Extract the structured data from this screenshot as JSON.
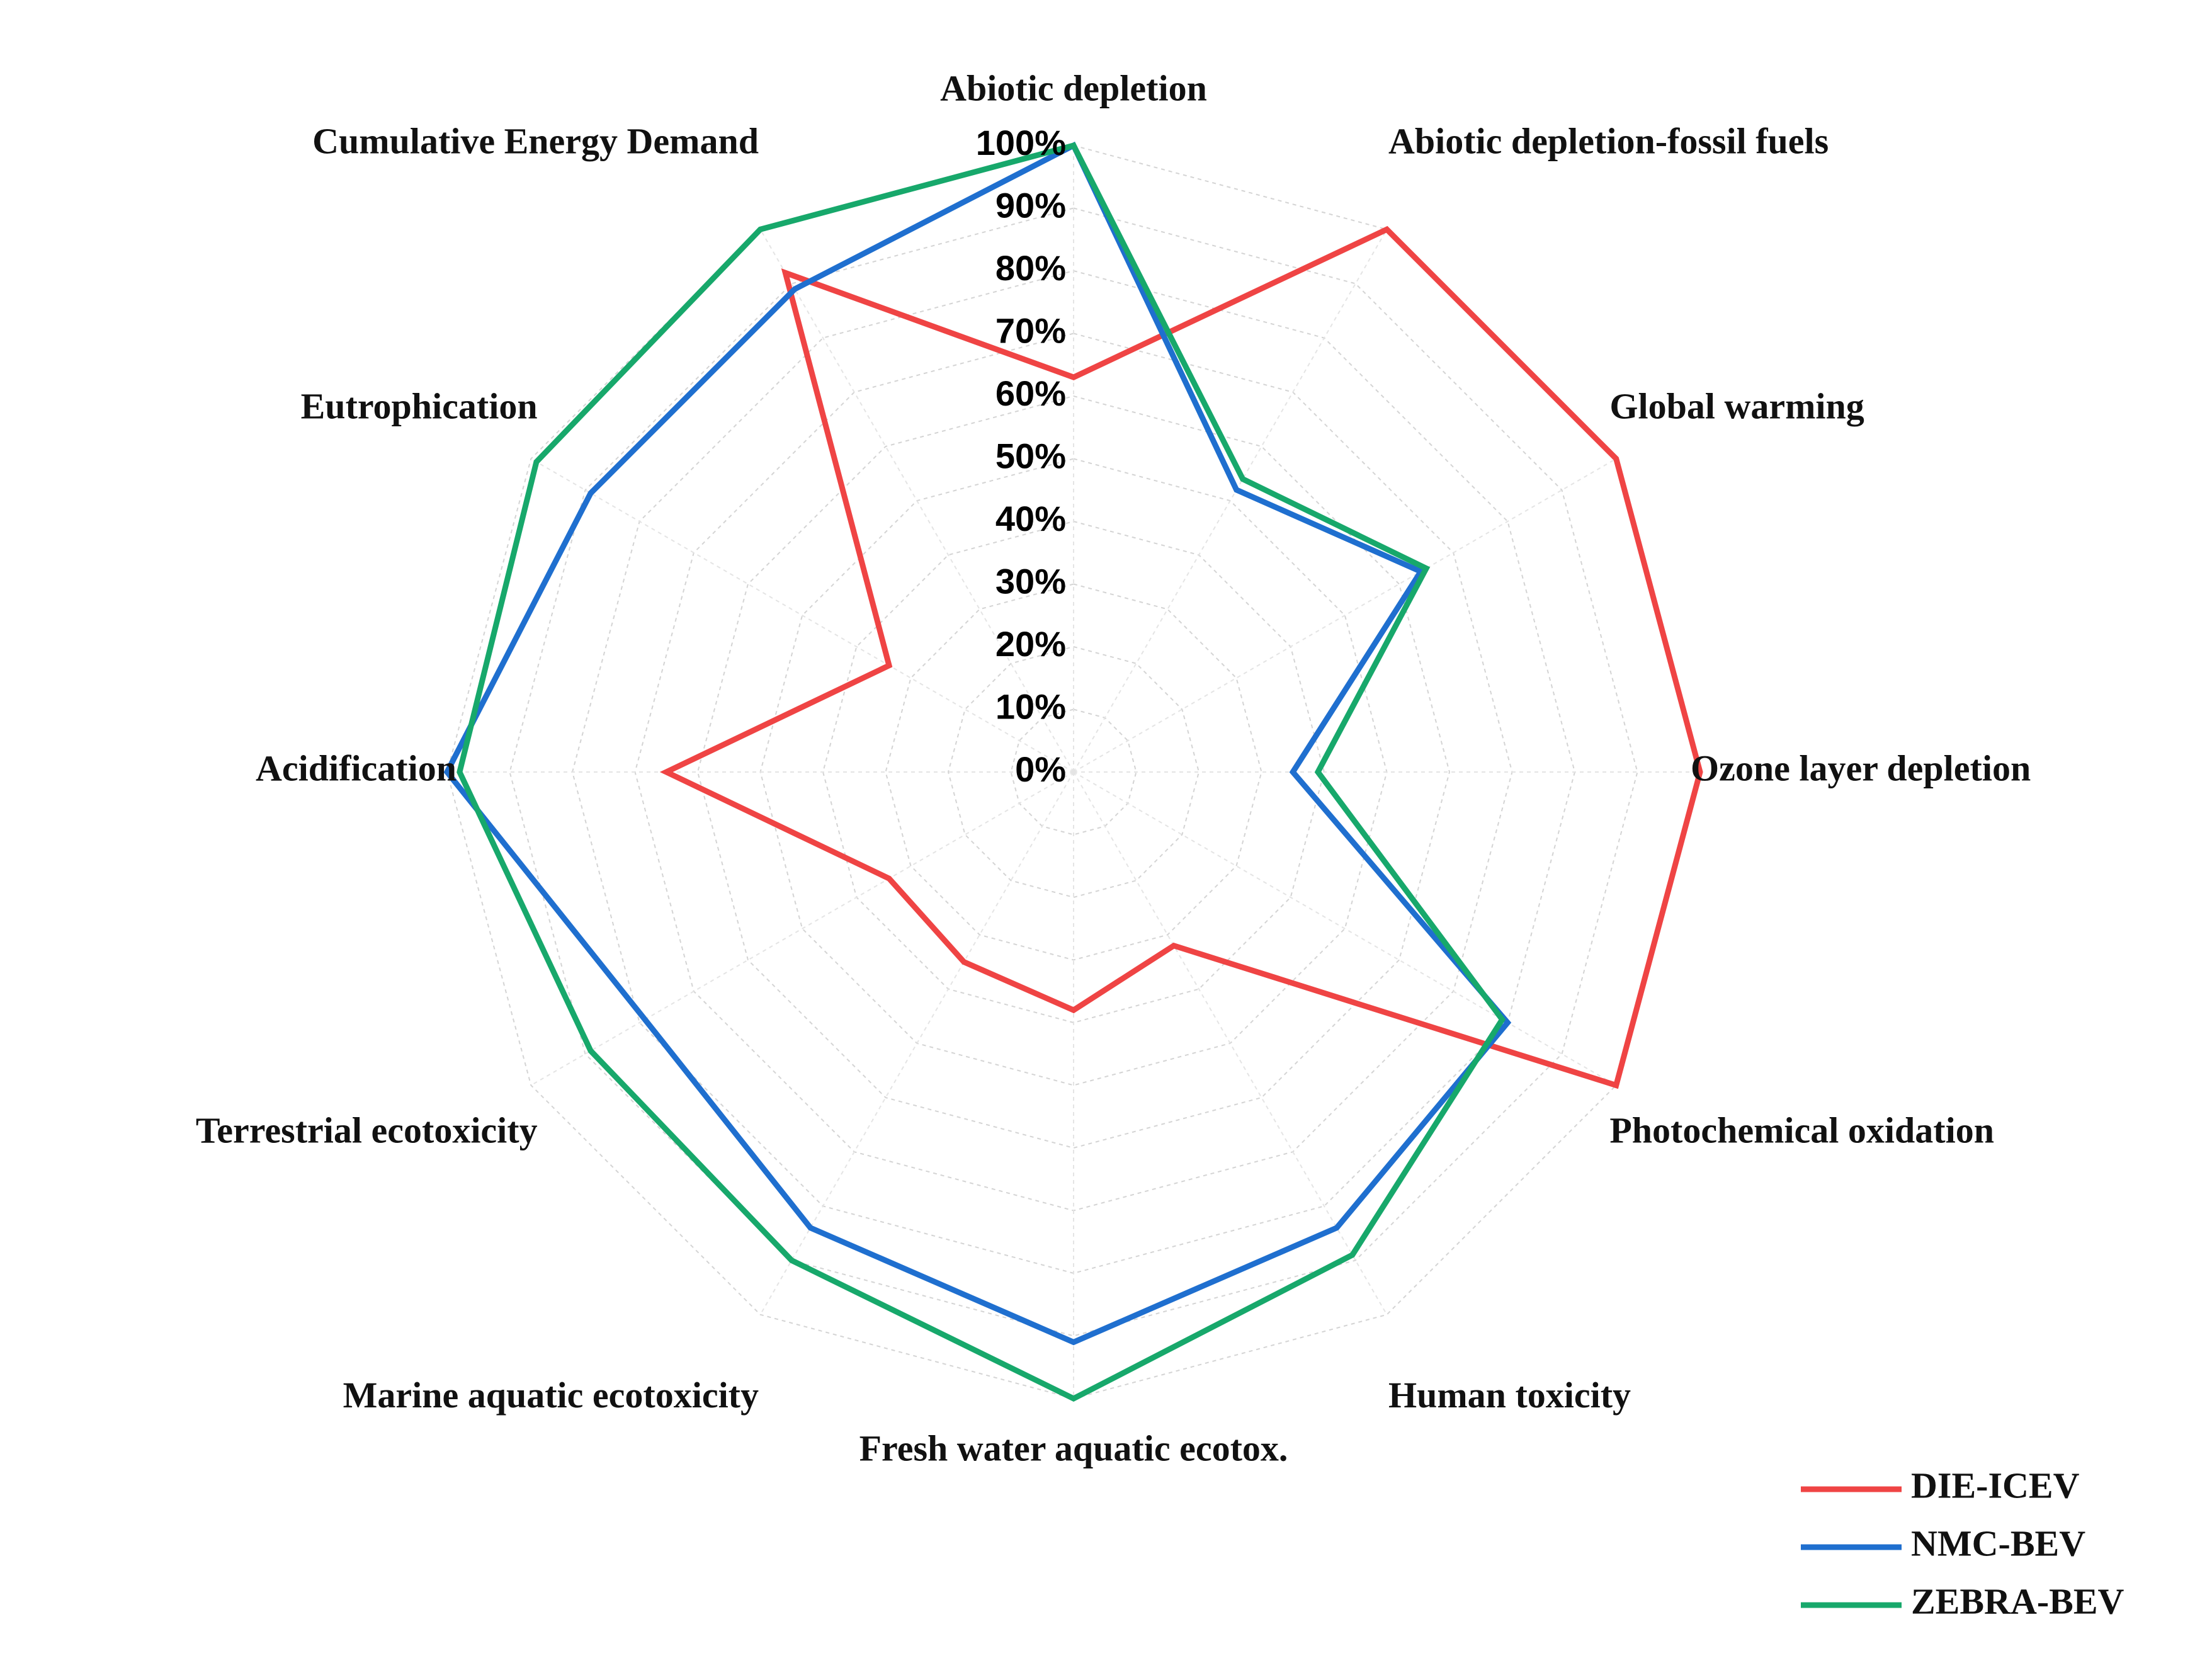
{
  "chart_data": {
    "type": "radar",
    "title": "",
    "categories": [
      "Abiotic depletion",
      "Abiotic depletion-fossil fuels",
      "Global warming",
      "Ozone layer depletion",
      "Photochemical oxidation",
      "Human toxicity",
      "Fresh water aquatic ecotox.",
      "Marine aquatic ecotoxicity",
      "Terrestrial ecotoxicity",
      "Acidification",
      "Eutrophication",
      "Cumulative Energy Demand"
    ],
    "ticks": [
      "0%",
      "10%",
      "20%",
      "30%",
      "40%",
      "50%",
      "60%",
      "70%",
      "80%",
      "90%",
      "100%"
    ],
    "rlim": [
      0,
      100
    ],
    "series": [
      {
        "name": "DIE-ICEV",
        "color": "#ef4444",
        "values": [
          63,
          100,
          100,
          100,
          100,
          32,
          38,
          35,
          34,
          65,
          34,
          92
        ]
      },
      {
        "name": "NMC-BEV",
        "color": "#1f6fcf",
        "values": [
          100,
          52,
          64,
          35,
          80,
          84,
          91,
          84,
          79,
          100,
          89,
          89
        ]
      },
      {
        "name": "ZEBRA-BEV",
        "color": "#17a86b",
        "values": [
          100,
          54,
          65,
          39,
          79,
          89,
          100,
          90,
          89,
          98,
          99,
          100
        ]
      }
    ],
    "legend_position": "bottom-right"
  }
}
